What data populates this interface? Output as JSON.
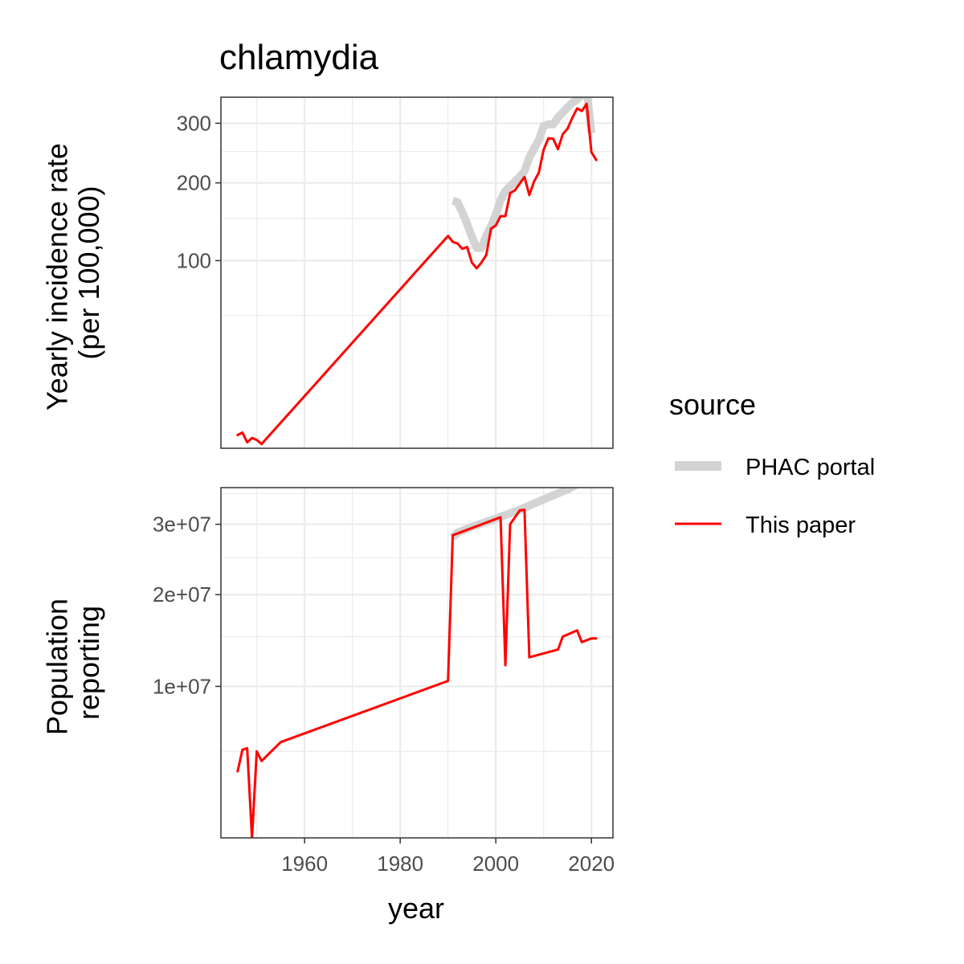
{
  "chart_data": {
    "type": "line",
    "title": "chlamydia",
    "xlabel": "year",
    "x_ticks": [
      1960,
      1980,
      2000,
      2020
    ],
    "x_tick_labels": [
      "1960",
      "1980",
      "2000",
      "2020"
    ],
    "xlim": [
      1942.5,
      2024.5
    ],
    "grid": true,
    "legend": {
      "title": "source",
      "placement": "right",
      "entries": [
        {
          "label": "PHAC portal",
          "color": "#d3d3d3"
        },
        {
          "label": "This paper",
          "color": "#ff0000"
        }
      ]
    },
    "panels": [
      {
        "ylabel_lines": [
          "Yearly incidence rate",
          "(per 100,000)"
        ],
        "y_scale": "sqrt",
        "ylim": [
          0,
          350
        ],
        "y_ticks": [
          100,
          200,
          300
        ],
        "y_tick_labels": [
          "100",
          "200",
          "300"
        ],
        "series": [
          {
            "name": "PHAC portal",
            "color": "#d3d3d3",
            "x": [
              1991,
              1992,
              1993,
              1994,
              1995,
              1996,
              1997,
              1998,
              1999,
              2000,
              2001,
              2002,
              2003,
              2004,
              2005,
              2006,
              2007,
              2008,
              2009,
              2010,
              2011,
              2012,
              2013,
              2014,
              2015,
              2016,
              2017,
              2018,
              2019,
              2020
            ],
            "y": [
              174,
              172,
              158,
              143,
              127,
              114,
              114,
              128,
              140,
              155,
              175,
              188,
              195,
              202,
              209,
              218,
              240,
              255,
              270,
              295,
              298,
              298,
              311,
              320,
              330,
              339,
              345,
              355,
              363,
              282
            ]
          },
          {
            "name": "This paper",
            "color": "#ff0000",
            "x": [
              1946,
              1947,
              1948,
              1949,
              1950,
              1951,
              1990,
              1991,
              1992,
              1993,
              1994,
              1995,
              1996,
              1997,
              1998,
              1999,
              2000,
              2001,
              2002,
              2003,
              2004,
              2005,
              2006,
              2007,
              2008,
              2009,
              2010,
              2011,
              2012,
              2013,
              2014,
              2015,
              2016,
              2017,
              2018,
              2019,
              2020,
              2021
            ],
            "y": [
              0.5,
              0.7,
              0.1,
              0.3,
              0.2,
              0.05,
              128,
              121,
              119,
              113,
              115,
              98,
              92,
              98,
              106,
              137,
              141,
              153,
              153,
              185,
              189,
              199,
              209,
              182,
              202,
              216,
              253,
              273,
              272,
              254,
              280,
              290,
              310,
              328,
              323,
              337,
              249,
              236
            ]
          }
        ]
      },
      {
        "ylabel_lines": [
          "Population",
          "reporting"
        ],
        "y_scale": "sqrt",
        "ylim": [
          1000000,
          36000000
        ],
        "y_ticks": [
          10000000,
          20000000,
          30000000
        ],
        "y_tick_labels": [
          "1e+07",
          "2e+07",
          "3e+07"
        ],
        "series": [
          {
            "name": "PHAC portal",
            "color": "#d3d3d3",
            "x": [
              1991,
              1992,
              1995,
              2000,
              2005,
              2010,
              2015,
              2020
            ],
            "y": [
              28000000,
              28700000,
              29600000,
              30900000,
              32300000,
              34000000,
              35700000,
              37900000
            ]
          },
          {
            "name": "This paper",
            "color": "#ff0000",
            "x": [
              1946,
              1947,
              1948,
              1949,
              1950,
              1951,
              1955,
              1990,
              1991,
              2001,
              2002,
              2003,
              2005,
              2006,
              2007,
              2013,
              2014,
              2017,
              2018,
              2020,
              2021
            ],
            "y": [
              3800000,
              5100000,
              5200000,
              1000000,
              5000000,
              4400000,
              5600000,
              10500000,
              28300000,
              31100000,
              12000000,
              30000000,
              32200000,
              32300000,
              12800000,
              13600000,
              15000000,
              15700000,
              14400000,
              14800000,
              14800000
            ]
          }
        ]
      }
    ]
  }
}
